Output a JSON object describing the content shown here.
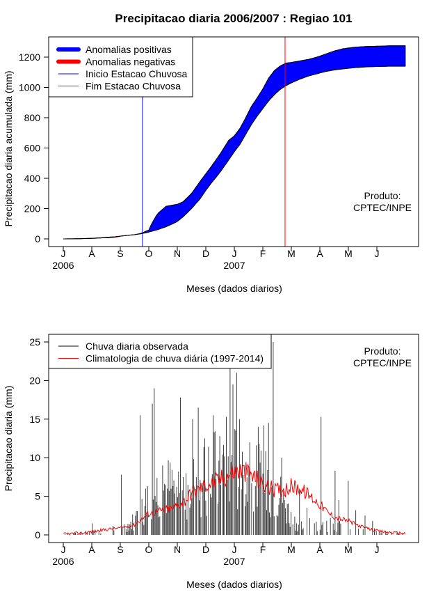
{
  "title": "Precipitacao diaria 2006/2007 : Regiao 101",
  "credit": {
    "line1": "Produto:",
    "line2": "CPTEC/INPE"
  },
  "months": [
    "J",
    "A",
    "S",
    "O",
    "N",
    "D",
    "J",
    "F",
    "M",
    "A",
    "M",
    "J"
  ],
  "years": [
    {
      "label": "2006",
      "month_index": 0
    },
    {
      "label": "2007",
      "month_index": 6
    }
  ],
  "colors": {
    "positive": "#0000ff",
    "negative": "#ff0000",
    "observed": "#000000",
    "climatology": "#ff0000",
    "axis": "#000000"
  },
  "chart_data": [
    {
      "type": "area",
      "id": "accumulated",
      "title": "Precipitacao diaria 2006/2007 : Regiao 101",
      "xlabel": "Meses (dados diarios)",
      "ylabel": "Precipitacao diaria acumulada (mm)",
      "x_unit": "month index (0 = July 2006)",
      "xlim": [
        0,
        12
      ],
      "ylim": [
        0,
        1300
      ],
      "yticks": [
        0,
        200,
        400,
        600,
        800,
        1000,
        1200
      ],
      "legend": {
        "position": "top-left",
        "entries": [
          {
            "label": "Anomalias positivas",
            "style": "thick",
            "color": "#0000ff"
          },
          {
            "label": "Anomalias negativas",
            "style": "thick",
            "color": "#ff0000"
          },
          {
            "label": "Inicio Estacao Chuvosa",
            "style": "line",
            "color": "#0000ff"
          },
          {
            "label": "Fim Estacao Chuvosa",
            "style": "line",
            "color": "#ff0000"
          }
        ]
      },
      "vlines": [
        {
          "name": "inicio-estacao-chuvosa",
          "x": 2.78,
          "color": "#0000ff"
        },
        {
          "name": "fim-estacao-chuvosa",
          "x": 7.78,
          "color": "#ff0000"
        }
      ],
      "observed": {
        "x": [
          0,
          0.5,
          1,
          1.5,
          1.8,
          2,
          2.3,
          2.5,
          2.7,
          2.78,
          2.95,
          3.0,
          3.1,
          3.3,
          3.6,
          3.9,
          4.0,
          4.2,
          4.5,
          4.8,
          5.0,
          5.2,
          5.5,
          5.8,
          6.0,
          6.2,
          6.4,
          6.6,
          6.8,
          7.0,
          7.2,
          7.4,
          7.6,
          7.8,
          8.0,
          8.3,
          8.6,
          8.9,
          9.2,
          9.5,
          9.8,
          10.2,
          10.6,
          11.0,
          11.5,
          12.0
        ],
        "y": [
          0,
          1,
          3,
          8,
          12,
          18,
          24,
          28,
          35,
          40,
          55,
          58,
          100,
          165,
          215,
          225,
          228,
          245,
          300,
          380,
          430,
          480,
          560,
          650,
          680,
          730,
          800,
          875,
          930,
          990,
          1060,
          1110,
          1140,
          1160,
          1165,
          1175,
          1185,
          1200,
          1220,
          1240,
          1255,
          1265,
          1270,
          1272,
          1275,
          1275
        ]
      },
      "climatology": {
        "x": [
          0,
          0.5,
          1,
          1.5,
          1.8,
          2,
          2.3,
          2.5,
          2.7,
          2.78,
          2.95,
          3.0,
          3.1,
          3.3,
          3.6,
          3.9,
          4.0,
          4.2,
          4.5,
          4.8,
          5.0,
          5.2,
          5.5,
          5.8,
          6.0,
          6.2,
          6.4,
          6.6,
          6.8,
          7.0,
          7.2,
          7.4,
          7.6,
          7.8,
          8.0,
          8.3,
          8.6,
          8.9,
          9.2,
          9.5,
          9.8,
          10.2,
          10.6,
          11.0,
          11.5,
          12.0
        ],
        "y": [
          0,
          1,
          4,
          10,
          14,
          18,
          24,
          28,
          33,
          36,
          42,
          45,
          50,
          60,
          80,
          105,
          115,
          145,
          200,
          265,
          320,
          370,
          440,
          520,
          575,
          625,
          690,
          755,
          810,
          860,
          910,
          950,
          985,
          1010,
          1030,
          1055,
          1075,
          1090,
          1105,
          1115,
          1122,
          1130,
          1135,
          1138,
          1140,
          1140
        ]
      },
      "negative_anomaly": {
        "x_range": [
          1.5,
          2.0
        ]
      }
    },
    {
      "type": "bar",
      "id": "daily",
      "xlabel": "Meses (dados diarios)",
      "ylabel": "Precipitacao diaria (mm)",
      "x_unit": "month index (0 = July 2006)",
      "xlim": [
        0,
        12
      ],
      "ylim": [
        0,
        25
      ],
      "yticks": [
        0,
        5,
        10,
        15,
        20,
        25
      ],
      "legend": {
        "position": "top-left",
        "entries": [
          {
            "label": "Chuva diaria observada",
            "style": "line",
            "color": "#000000"
          },
          {
            "label": "Climatologia de chuva diária (1997-2014)",
            "style": "line",
            "color": "#ff0000"
          }
        ]
      },
      "observed_profile": {
        "x": [
          0,
          1,
          2,
          2.6,
          3.0,
          3.5,
          4.0,
          5.0,
          5.8,
          6.3,
          7.0,
          7.5,
          8.0,
          8.5,
          9.0,
          9.5,
          10.0,
          11.0,
          12.0
        ],
        "y": [
          0.1,
          0.2,
          0.6,
          2.0,
          4.5,
          6.0,
          5.5,
          7.0,
          9.0,
          7.0,
          6.5,
          5.5,
          2.0,
          0.8,
          1.0,
          1.3,
          0.8,
          0.3,
          0.1
        ]
      },
      "observed_peaks": [
        {
          "x": 1.02,
          "y": 1.5
        },
        {
          "x": 2.05,
          "y": 7.8
        },
        {
          "x": 2.7,
          "y": 15.5
        },
        {
          "x": 2.9,
          "y": 6.0
        },
        {
          "x": 3.12,
          "y": 17.0
        },
        {
          "x": 3.2,
          "y": 19.0
        },
        {
          "x": 3.5,
          "y": 9.0
        },
        {
          "x": 3.65,
          "y": 6.0
        },
        {
          "x": 4.1,
          "y": 17.8
        },
        {
          "x": 4.3,
          "y": 8.0
        },
        {
          "x": 4.55,
          "y": 15.0
        },
        {
          "x": 4.72,
          "y": 16.5
        },
        {
          "x": 4.95,
          "y": 12.5
        },
        {
          "x": 5.25,
          "y": 15.5
        },
        {
          "x": 5.5,
          "y": 12.8
        },
        {
          "x": 5.72,
          "y": 15.3
        },
        {
          "x": 5.86,
          "y": 21.8
        },
        {
          "x": 5.95,
          "y": 19.5
        },
        {
          "x": 6.08,
          "y": 21.0
        },
        {
          "x": 6.18,
          "y": 15.0
        },
        {
          "x": 6.55,
          "y": 12.0
        },
        {
          "x": 6.85,
          "y": 14.0
        },
        {
          "x": 7.05,
          "y": 14.2
        },
        {
          "x": 7.2,
          "y": 14.5
        },
        {
          "x": 7.38,
          "y": 25.0
        },
        {
          "x": 7.65,
          "y": 10.0
        },
        {
          "x": 7.85,
          "y": 4.0
        },
        {
          "x": 8.3,
          "y": 6.0
        },
        {
          "x": 8.55,
          "y": 3.5
        },
        {
          "x": 9.05,
          "y": 15.3
        },
        {
          "x": 9.55,
          "y": 8.3
        },
        {
          "x": 9.65,
          "y": 4.5
        },
        {
          "x": 10.0,
          "y": 7.0
        },
        {
          "x": 10.25,
          "y": 3.2
        },
        {
          "x": 10.6,
          "y": 2.5
        },
        {
          "x": 10.85,
          "y": 1.8
        }
      ],
      "climatology": {
        "x": [
          0,
          0.5,
          1.0,
          1.5,
          2.0,
          2.5,
          2.8,
          3.0,
          3.3,
          3.5,
          3.8,
          4.0,
          4.3,
          4.5,
          4.8,
          5.0,
          5.3,
          5.5,
          5.8,
          6.0,
          6.2,
          6.5,
          6.8,
          7.0,
          7.3,
          7.5,
          7.8,
          8.0,
          8.3,
          8.6,
          9.0,
          9.3,
          9.6,
          10.0,
          10.3,
          10.6,
          11.0,
          11.5,
          12.0
        ],
        "y": [
          0.1,
          0.2,
          0.4,
          0.7,
          0.9,
          1.3,
          2.2,
          2.8,
          3.0,
          3.2,
          3.4,
          3.8,
          4.5,
          5.5,
          6.0,
          6.5,
          6.8,
          7.2,
          7.8,
          8.2,
          8.3,
          8.0,
          7.2,
          6.5,
          6.0,
          5.8,
          6.0,
          6.3,
          6.0,
          5.2,
          4.0,
          2.8,
          2.2,
          1.8,
          1.3,
          0.9,
          0.5,
          0.3,
          0.2
        ]
      }
    }
  ]
}
